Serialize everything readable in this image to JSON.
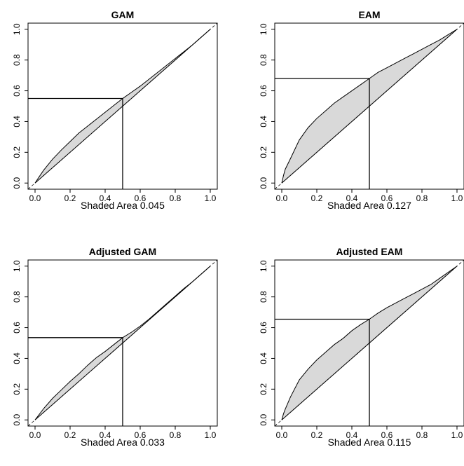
{
  "chart_data": [
    {
      "type": "area",
      "title": "GAM",
      "xlabel": "Shaded Area 0.045",
      "ylabel": "",
      "xlim": [
        0,
        1
      ],
      "ylim": [
        0,
        1
      ],
      "xticks": [
        "0.0",
        "0.2",
        "0.4",
        "0.6",
        "0.8",
        "1.0"
      ],
      "yticks": [
        "0.0",
        "0.2",
        "0.4",
        "0.6",
        "0.8",
        "1.0"
      ],
      "reference_line": {
        "style": "dashed",
        "from": [
          0,
          0
        ],
        "to": [
          1,
          1
        ]
      },
      "marker_point": {
        "x": 0.5,
        "y": 0.55
      },
      "curve": {
        "x": [
          0,
          0.02,
          0.05,
          0.1,
          0.15,
          0.2,
          0.25,
          0.3,
          0.35,
          0.4,
          0.45,
          0.5,
          0.55,
          0.6,
          0.65,
          0.7,
          0.75,
          0.8,
          0.85,
          0.9,
          0.95,
          1.0
        ],
        "y": [
          0,
          0.035,
          0.085,
          0.155,
          0.215,
          0.27,
          0.325,
          0.37,
          0.415,
          0.46,
          0.505,
          0.55,
          0.59,
          0.63,
          0.675,
          0.72,
          0.765,
          0.81,
          0.855,
          0.9,
          0.95,
          1.0
        ]
      },
      "fill_color": "#d9d9d9"
    },
    {
      "type": "area",
      "title": "EAM",
      "xlabel": "Shaded Area 0.127",
      "ylabel": "",
      "xlim": [
        0,
        1
      ],
      "ylim": [
        0,
        1
      ],
      "xticks": [
        "0.0",
        "0.2",
        "0.4",
        "0.6",
        "0.8",
        "1.0"
      ],
      "yticks": [
        "0.0",
        "0.2",
        "0.4",
        "0.6",
        "0.8",
        "1.0"
      ],
      "reference_line": {
        "style": "dashed",
        "from": [
          0,
          0
        ],
        "to": [
          1,
          1
        ]
      },
      "marker_point": {
        "x": 0.5,
        "y": 0.68
      },
      "curve": {
        "x": [
          0,
          0.01,
          0.02,
          0.05,
          0.1,
          0.15,
          0.2,
          0.25,
          0.3,
          0.35,
          0.4,
          0.45,
          0.5,
          0.55,
          0.6,
          0.65,
          0.7,
          0.75,
          0.8,
          0.85,
          0.9,
          0.95,
          1.0
        ],
        "y": [
          0,
          0.05,
          0.09,
          0.16,
          0.28,
          0.36,
          0.42,
          0.47,
          0.52,
          0.56,
          0.6,
          0.64,
          0.68,
          0.72,
          0.75,
          0.78,
          0.81,
          0.84,
          0.87,
          0.9,
          0.93,
          0.965,
          1.0
        ]
      },
      "fill_color": "#d9d9d9"
    },
    {
      "type": "area",
      "title": "Adjusted GAM",
      "xlabel": "Shaded Area 0.033",
      "ylabel": "",
      "xlim": [
        0,
        1
      ],
      "ylim": [
        0,
        1
      ],
      "xticks": [
        "0.0",
        "0.2",
        "0.4",
        "0.6",
        "0.8",
        "1.0"
      ],
      "yticks": [
        "0.0",
        "0.2",
        "0.4",
        "0.6",
        "0.8",
        "1.0"
      ],
      "reference_line": {
        "style": "dashed",
        "from": [
          0,
          0
        ],
        "to": [
          1,
          1
        ]
      },
      "marker_point": {
        "x": 0.5,
        "y": 0.535
      },
      "curve": {
        "x": [
          0,
          0.02,
          0.05,
          0.1,
          0.15,
          0.2,
          0.25,
          0.3,
          0.35,
          0.4,
          0.45,
          0.5,
          0.55,
          0.6,
          0.65,
          0.7,
          0.75,
          0.8,
          0.85,
          0.9,
          0.95,
          1.0
        ],
        "y": [
          0,
          0.03,
          0.075,
          0.14,
          0.195,
          0.25,
          0.3,
          0.355,
          0.405,
          0.445,
          0.49,
          0.535,
          0.57,
          0.61,
          0.655,
          0.705,
          0.755,
          0.805,
          0.855,
          0.9,
          0.95,
          1.0
        ]
      },
      "fill_color": "#d9d9d9"
    },
    {
      "type": "area",
      "title": "Adjusted EAM",
      "xlabel": "Shaded Area 0.115",
      "ylabel": "",
      "xlim": [
        0,
        1
      ],
      "ylim": [
        0,
        1
      ],
      "xticks": [
        "0.0",
        "0.2",
        "0.4",
        "0.6",
        "0.8",
        "1.0"
      ],
      "yticks": [
        "0.0",
        "0.2",
        "0.4",
        "0.6",
        "0.8",
        "1.0"
      ],
      "reference_line": {
        "style": "dashed",
        "from": [
          0,
          0
        ],
        "to": [
          1,
          1
        ]
      },
      "marker_point": {
        "x": 0.5,
        "y": 0.655
      },
      "curve": {
        "x": [
          0,
          0.01,
          0.02,
          0.05,
          0.1,
          0.15,
          0.2,
          0.25,
          0.3,
          0.35,
          0.4,
          0.45,
          0.5,
          0.55,
          0.6,
          0.65,
          0.7,
          0.75,
          0.8,
          0.85,
          0.9,
          0.95,
          1.0
        ],
        "y": [
          0,
          0.04,
          0.07,
          0.15,
          0.26,
          0.33,
          0.39,
          0.44,
          0.49,
          0.53,
          0.58,
          0.62,
          0.655,
          0.695,
          0.73,
          0.76,
          0.79,
          0.82,
          0.85,
          0.88,
          0.92,
          0.96,
          1.0
        ]
      },
      "fill_color": "#d9d9d9"
    }
  ]
}
